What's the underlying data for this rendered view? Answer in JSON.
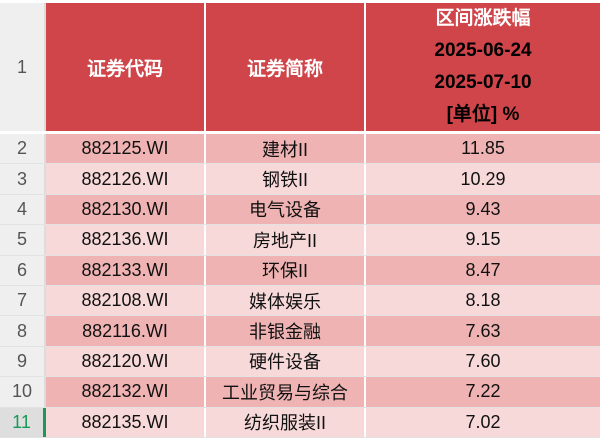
{
  "header": {
    "row_number": "1",
    "col_code": "证券代码",
    "col_name": "证券简称",
    "col_change_title": "区间涨跌幅",
    "start_date": "2025-06-24",
    "end_date": "2025-07-10",
    "unit": "[单位] %"
  },
  "colors": {
    "header": "#cf454a",
    "row_dark": "#efb3b3",
    "row_light": "#f8d9da",
    "selected_row": "#1a9a5a"
  },
  "rows": [
    {
      "n": "2",
      "code": "882125.WI",
      "name": "建材II",
      "value": "11.85"
    },
    {
      "n": "3",
      "code": "882126.WI",
      "name": "钢铁II",
      "value": "10.29"
    },
    {
      "n": "4",
      "code": "882130.WI",
      "name": "电气设备",
      "value": "9.43"
    },
    {
      "n": "5",
      "code": "882136.WI",
      "name": "房地产II",
      "value": "9.15"
    },
    {
      "n": "6",
      "code": "882133.WI",
      "name": "环保II",
      "value": "8.47"
    },
    {
      "n": "7",
      "code": "882108.WI",
      "name": "媒体娱乐",
      "value": "8.18"
    },
    {
      "n": "8",
      "code": "882116.WI",
      "name": "非银金融",
      "value": "7.63"
    },
    {
      "n": "9",
      "code": "882120.WI",
      "name": "硬件设备",
      "value": "7.60"
    },
    {
      "n": "10",
      "code": "882132.WI",
      "name": "工业贸易与综合",
      "value": "7.22"
    },
    {
      "n": "11",
      "code": "882135.WI",
      "name": "纺织服装II",
      "value": "7.02"
    }
  ]
}
